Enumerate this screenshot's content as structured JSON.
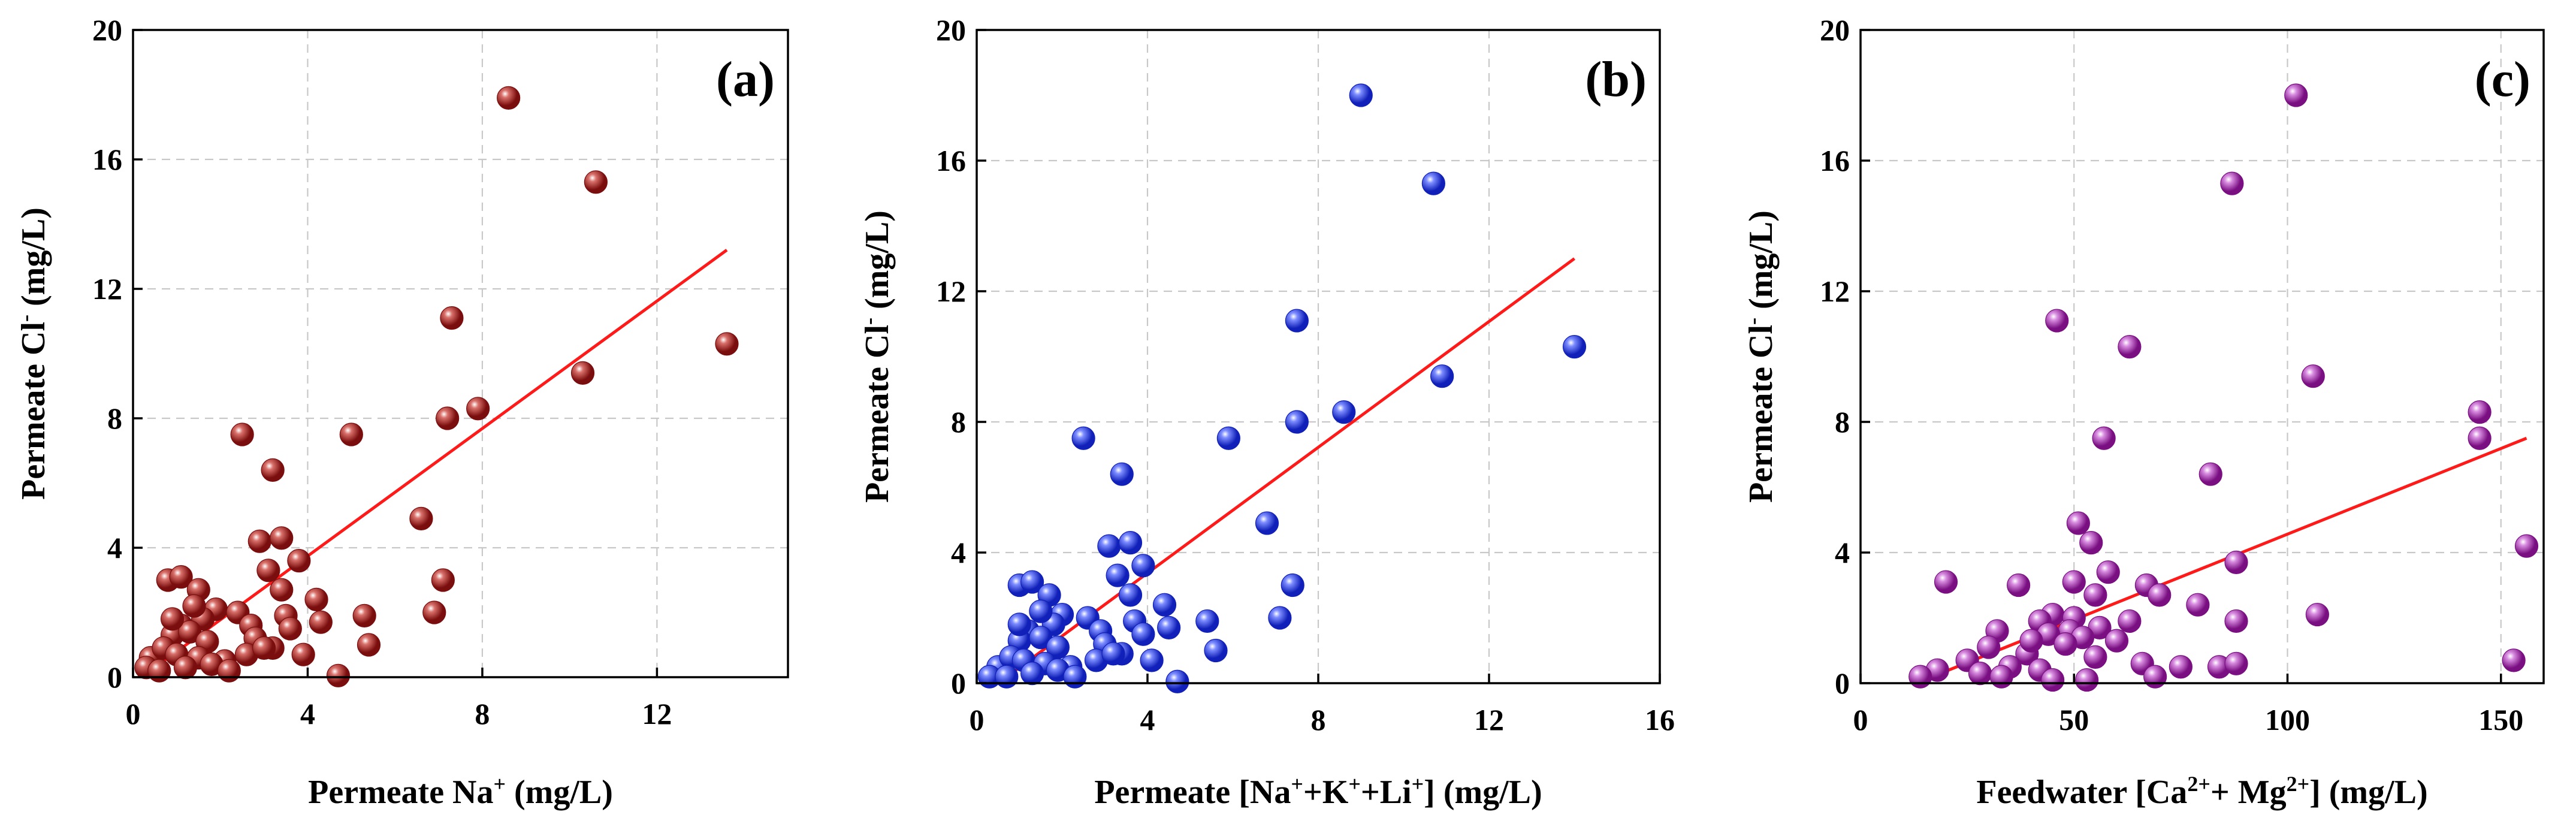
{
  "chart_data": [
    {
      "type": "scatter",
      "panel_label": "(a)",
      "color": "#7a0d0d",
      "color_light": "#d9706a",
      "xlabel": {
        "prefix": "Permeate Na",
        "sup": "+",
        "suffix": " (mg/L)"
      },
      "ylabel": {
        "prefix": "Permeate Cl",
        "sup": "-",
        "suffix": " (mg/L)"
      },
      "xlim": [
        0,
        15
      ],
      "ylim": [
        0,
        20
      ],
      "xticks": [
        0,
        4,
        8,
        12
      ],
      "yticks": [
        0,
        4,
        8,
        12,
        16,
        20
      ],
      "grid": true,
      "fit_line": [
        [
          0.3,
          0.1
        ],
        [
          13.6,
          13.2
        ]
      ],
      "points": [
        [
          8.6,
          17.9
        ],
        [
          10.6,
          15.3
        ],
        [
          7.3,
          11.1
        ],
        [
          13.6,
          10.3
        ],
        [
          10.3,
          9.4
        ],
        [
          7.9,
          8.3
        ],
        [
          7.2,
          8.0
        ],
        [
          2.5,
          7.5
        ],
        [
          5.0,
          7.5
        ],
        [
          3.2,
          6.4
        ],
        [
          6.6,
          4.9
        ],
        [
          2.9,
          4.2
        ],
        [
          3.4,
          4.3
        ],
        [
          3.8,
          3.6
        ],
        [
          3.1,
          3.3
        ],
        [
          7.1,
          3.0
        ],
        [
          0.8,
          3.0
        ],
        [
          1.1,
          3.1
        ],
        [
          1.5,
          2.7
        ],
        [
          3.4,
          2.7
        ],
        [
          4.2,
          2.4
        ],
        [
          6.9,
          2.0
        ],
        [
          1.9,
          2.1
        ],
        [
          2.4,
          2.0
        ],
        [
          3.5,
          1.9
        ],
        [
          1.6,
          1.8
        ],
        [
          5.3,
          1.9
        ],
        [
          2.7,
          1.6
        ],
        [
          3.6,
          1.5
        ],
        [
          4.3,
          1.7
        ],
        [
          1.1,
          1.6
        ],
        [
          0.9,
          1.3
        ],
        [
          1.3,
          1.4
        ],
        [
          1.7,
          1.1
        ],
        [
          2.8,
          1.2
        ],
        [
          3.2,
          0.9
        ],
        [
          3.9,
          0.7
        ],
        [
          5.4,
          1.0
        ],
        [
          0.4,
          0.6
        ],
        [
          0.7,
          0.9
        ],
        [
          1.0,
          0.7
        ],
        [
          1.5,
          0.6
        ],
        [
          2.1,
          0.5
        ],
        [
          2.6,
          0.7
        ],
        [
          0.3,
          0.3
        ],
        [
          0.6,
          0.2
        ],
        [
          1.2,
          0.3
        ],
        [
          1.8,
          0.4
        ],
        [
          2.2,
          0.2
        ],
        [
          4.7,
          0.05
        ],
        [
          3.0,
          0.9
        ],
        [
          1.4,
          2.2
        ],
        [
          0.9,
          1.8
        ]
      ]
    },
    {
      "type": "scatter",
      "panel_label": "(b)",
      "color": "#1020b8",
      "color_light": "#7c8cff",
      "xlabel": {
        "prefix": "Permeate [Na",
        "sup": "+",
        "mid1": "+K",
        "sup2": "+",
        "mid2": "+Li",
        "sup3": "+",
        "suffix": "] (mg/L)"
      },
      "ylabel": {
        "prefix": "Permeate Cl",
        "sup": "-",
        "suffix": " (mg/L)"
      },
      "xlim": [
        0,
        16
      ],
      "ylim": [
        0,
        20
      ],
      "xticks": [
        0,
        4,
        8,
        12,
        16
      ],
      "yticks": [
        0,
        4,
        8,
        12,
        16,
        20
      ],
      "grid": true,
      "fit_line": [
        [
          0.5,
          0.0
        ],
        [
          14.0,
          13.0
        ]
      ],
      "points": [
        [
          9.0,
          18.0
        ],
        [
          10.7,
          15.3
        ],
        [
          7.5,
          11.1
        ],
        [
          14.0,
          10.3
        ],
        [
          10.9,
          9.4
        ],
        [
          8.6,
          8.3
        ],
        [
          7.5,
          8.0
        ],
        [
          2.5,
          7.5
        ],
        [
          5.9,
          7.5
        ],
        [
          3.4,
          6.4
        ],
        [
          6.8,
          4.9
        ],
        [
          3.1,
          4.2
        ],
        [
          3.6,
          4.3
        ],
        [
          3.9,
          3.6
        ],
        [
          3.3,
          3.3
        ],
        [
          7.4,
          3.0
        ],
        [
          1.0,
          3.0
        ],
        [
          1.3,
          3.1
        ],
        [
          1.7,
          2.7
        ],
        [
          3.6,
          2.7
        ],
        [
          4.4,
          2.4
        ],
        [
          7.1,
          2.0
        ],
        [
          2.0,
          2.1
        ],
        [
          2.6,
          2.0
        ],
        [
          3.7,
          1.9
        ],
        [
          1.8,
          1.8
        ],
        [
          5.4,
          1.9
        ],
        [
          2.9,
          1.6
        ],
        [
          3.9,
          1.5
        ],
        [
          4.5,
          1.7
        ],
        [
          1.2,
          1.6
        ],
        [
          1.0,
          1.3
        ],
        [
          1.5,
          1.4
        ],
        [
          1.9,
          1.1
        ],
        [
          3.0,
          1.2
        ],
        [
          3.4,
          0.9
        ],
        [
          4.1,
          0.7
        ],
        [
          5.6,
          1.0
        ],
        [
          0.5,
          0.5
        ],
        [
          0.8,
          0.8
        ],
        [
          1.1,
          0.7
        ],
        [
          1.6,
          0.6
        ],
        [
          2.2,
          0.5
        ],
        [
          2.8,
          0.7
        ],
        [
          0.3,
          0.2
        ],
        [
          0.7,
          0.2
        ],
        [
          1.3,
          0.3
        ],
        [
          1.9,
          0.4
        ],
        [
          2.3,
          0.2
        ],
        [
          4.7,
          0.05
        ],
        [
          3.2,
          0.9
        ],
        [
          1.5,
          2.2
        ],
        [
          1.0,
          1.8
        ]
      ]
    },
    {
      "type": "scatter",
      "panel_label": "(c)",
      "color": "#7a0f82",
      "color_light": "#d88ce0",
      "xlabel": {
        "prefix": "Feedwater [Ca",
        "sup": "2+",
        "mid1": "+ Mg",
        "sup2": "2+",
        "suffix": "] (mg/L)"
      },
      "ylabel": {
        "prefix": "Permeate Cl",
        "sup": "-",
        "suffix": " (mg/L)"
      },
      "xlim": [
        0,
        160
      ],
      "ylim": [
        0,
        20
      ],
      "xticks": [
        0,
        50,
        100,
        150
      ],
      "yticks": [
        0,
        4,
        8,
        12,
        16,
        20
      ],
      "grid": true,
      "fit_line": [
        [
          13,
          0.0
        ],
        [
          156,
          7.5
        ]
      ],
      "points": [
        [
          102,
          18.0
        ],
        [
          87,
          15.3
        ],
        [
          46,
          11.1
        ],
        [
          63,
          10.3
        ],
        [
          106,
          9.4
        ],
        [
          145,
          8.3
        ],
        [
          145,
          7.5
        ],
        [
          57,
          7.5
        ],
        [
          82,
          6.4
        ],
        [
          51,
          4.9
        ],
        [
          54,
          4.3
        ],
        [
          156,
          4.2
        ],
        [
          88,
          3.7
        ],
        [
          58,
          3.4
        ],
        [
          67,
          3.0
        ],
        [
          37,
          3.0
        ],
        [
          20,
          3.1
        ],
        [
          50,
          3.1
        ],
        [
          70,
          2.7
        ],
        [
          55,
          2.7
        ],
        [
          79,
          2.4
        ],
        [
          107,
          2.1
        ],
        [
          45,
          2.1
        ],
        [
          50,
          2.0
        ],
        [
          42,
          1.9
        ],
        [
          63,
          1.9
        ],
        [
          88,
          1.9
        ],
        [
          49,
          1.6
        ],
        [
          32,
          1.6
        ],
        [
          56,
          1.7
        ],
        [
          44,
          1.5
        ],
        [
          52,
          1.4
        ],
        [
          60,
          1.3
        ],
        [
          30,
          1.1
        ],
        [
          48,
          1.2
        ],
        [
          39,
          0.9
        ],
        [
          25,
          0.7
        ],
        [
          66,
          0.6
        ],
        [
          75,
          0.5
        ],
        [
          18,
          0.4
        ],
        [
          28,
          0.3
        ],
        [
          35,
          0.5
        ],
        [
          42,
          0.4
        ],
        [
          55,
          0.8
        ],
        [
          14,
          0.2
        ],
        [
          33,
          0.2
        ],
        [
          45,
          0.1
        ],
        [
          84,
          0.5
        ],
        [
          88,
          0.6
        ],
        [
          153,
          0.7
        ],
        [
          53,
          0.1
        ],
        [
          69,
          0.2
        ],
        [
          40,
          1.3
        ]
      ]
    }
  ]
}
